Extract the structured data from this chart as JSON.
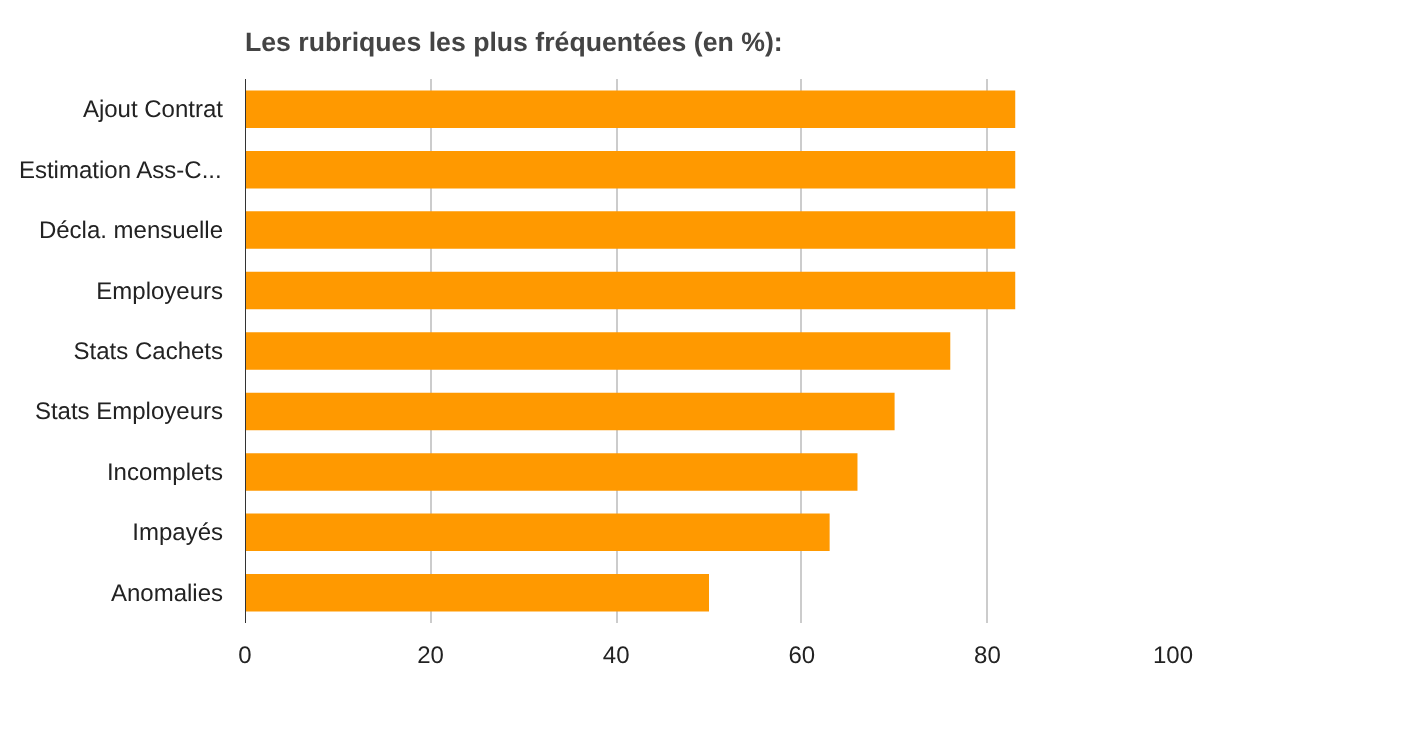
{
  "chart_data": {
    "type": "bar",
    "orientation": "horizontal",
    "title": "Les rubriques les plus fréquentées (en %):",
    "categories": [
      "Ajout Contrat",
      "Estimation Ass-C...",
      "Décla. mensuelle",
      "Employeurs",
      "Stats Cachets",
      "Stats Employeurs",
      "Incomplets",
      "Impayés",
      "Anomalies"
    ],
    "values": [
      83,
      83,
      83,
      83,
      76,
      70,
      66,
      63,
      50
    ],
    "color": "#ff9900",
    "xlim": [
      0,
      100
    ],
    "xticks": [
      0,
      20,
      40,
      60,
      80,
      100
    ],
    "grid": "x"
  }
}
